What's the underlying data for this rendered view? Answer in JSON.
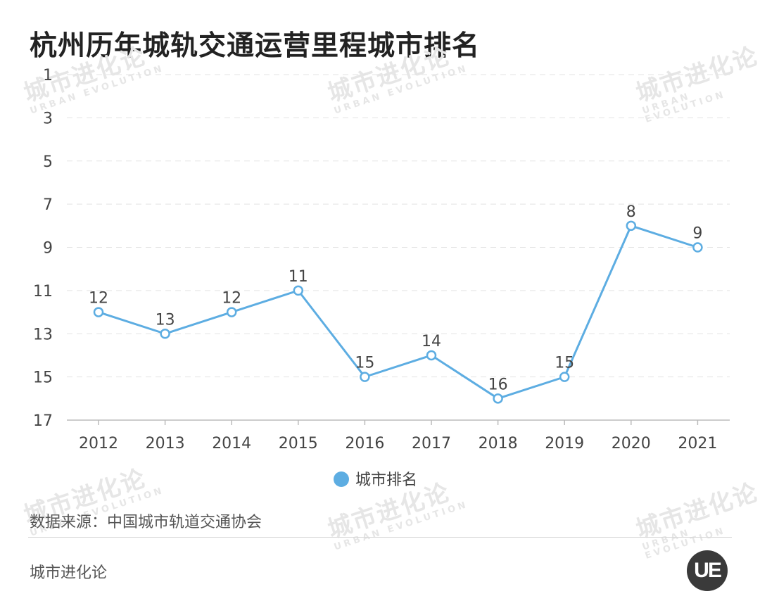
{
  "title": "杭州历年城轨交通运营里程城市排名",
  "watermark": {
    "cn": "城市进化论",
    "en": "URBAN EVOLUTION"
  },
  "source": "数据来源：中国城市轨道交通协会",
  "brand": "城市进化论",
  "logo_text": "UE",
  "colors": {
    "line": "#5dade2",
    "grid": "#e3e3e3",
    "axis": "#bbbbbb",
    "text": "#444444"
  },
  "chart_data": {
    "type": "line",
    "categories": [
      "2012",
      "2013",
      "2014",
      "2015",
      "2016",
      "2017",
      "2018",
      "2019",
      "2020",
      "2021"
    ],
    "series": [
      {
        "name": "城市排名",
        "values": [
          12,
          13,
          12,
          11,
          15,
          14,
          16,
          15,
          8,
          9
        ]
      }
    ],
    "y_ticks": [
      1,
      3,
      5,
      7,
      9,
      11,
      13,
      15,
      17
    ],
    "ylim": [
      1,
      17
    ],
    "y_inverted": true,
    "grid": "horizontal-dashed",
    "legend_position": "bottom-center",
    "data_labels": true
  }
}
